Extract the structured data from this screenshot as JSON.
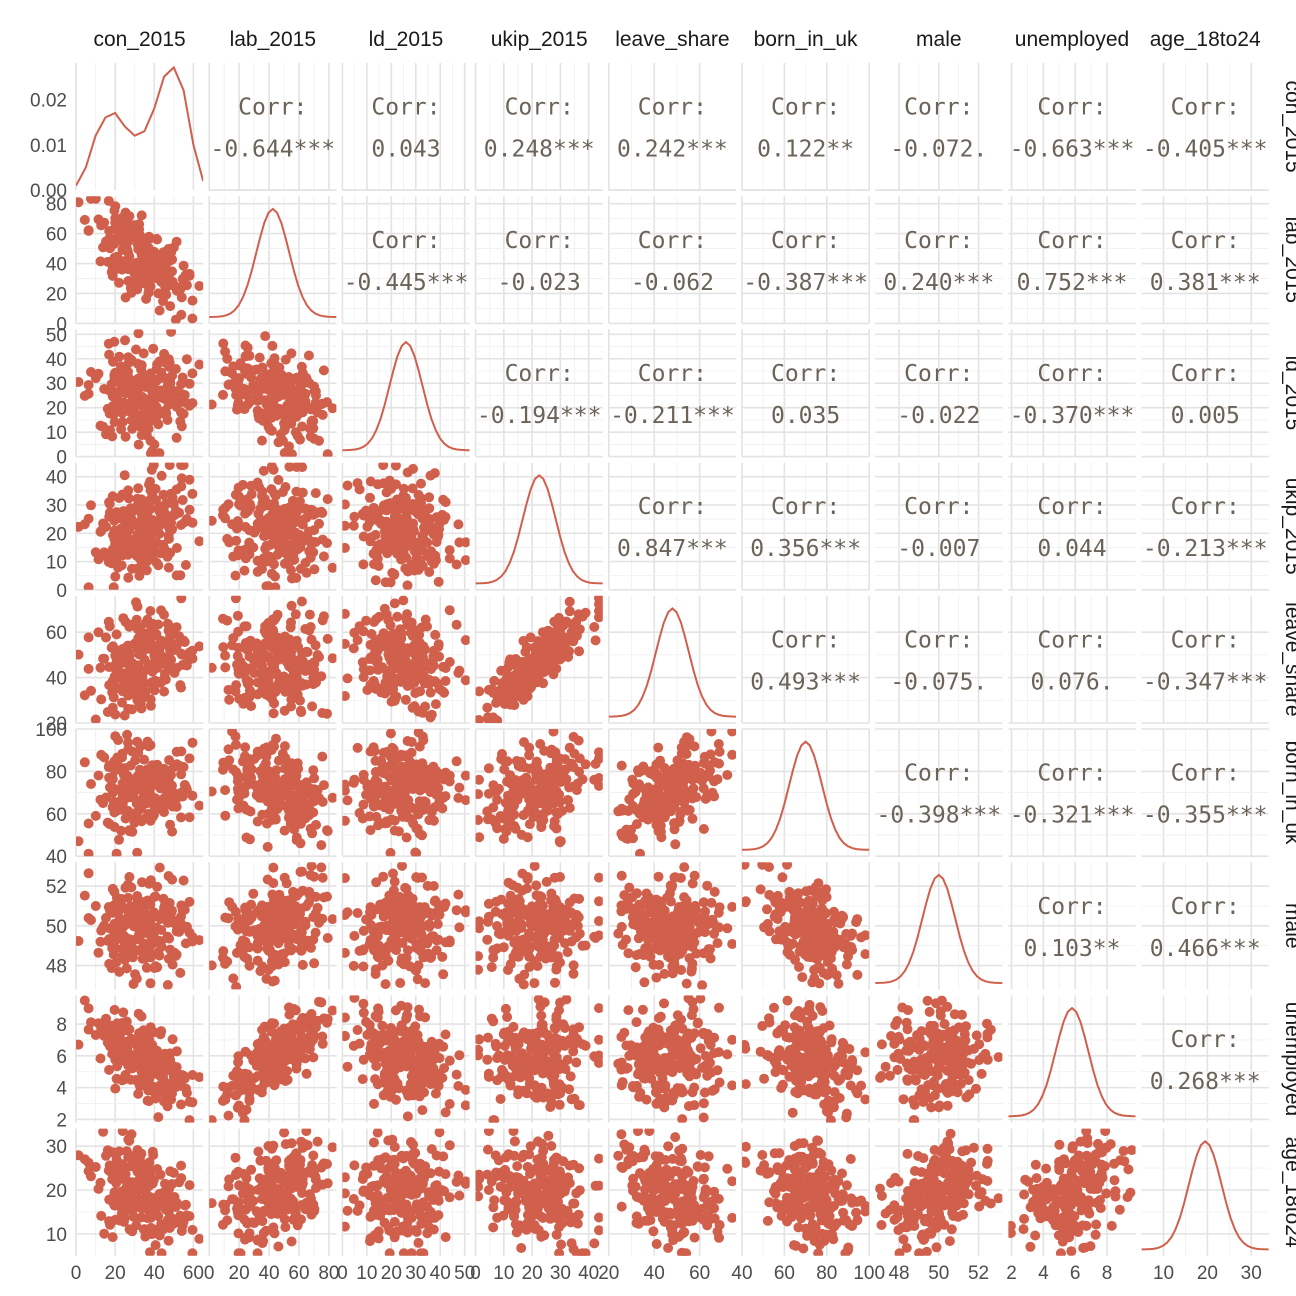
{
  "chart_data": {
    "type": "scatter",
    "title": "",
    "variables": [
      "con_2015",
      "lab_2015",
      "ld_2015",
      "ukip_2015",
      "leave_share",
      "born_in_uk",
      "male",
      "unemployed",
      "age_18to24"
    ],
    "strip_labels": [
      "con_2015",
      "lab_2015",
      "ld_2015",
      "ukip_2015",
      "leave_share",
      "born_in_uk",
      "male",
      "unemployed",
      "age_18to24"
    ],
    "ranges": [
      [
        0,
        65
      ],
      [
        0,
        85
      ],
      [
        0,
        52
      ],
      [
        0,
        45
      ],
      [
        20,
        76
      ],
      [
        40,
        100
      ],
      [
        46.8,
        53.2
      ],
      [
        1.8,
        9.8
      ],
      [
        5,
        34
      ]
    ],
    "x_ticks": [
      [
        0,
        20,
        40,
        60
      ],
      [
        0,
        20,
        40,
        60,
        80
      ],
      [
        0,
        10,
        20,
        30,
        40,
        50
      ],
      [
        0,
        10,
        20,
        30,
        40
      ],
      [
        20,
        40,
        60
      ],
      [
        40,
        60,
        80,
        100
      ],
      [
        48,
        50,
        52
      ],
      [
        2,
        4,
        6,
        8
      ],
      [
        10,
        20,
        30
      ]
    ],
    "x_tick_labels": [
      [
        "0",
        "20",
        "40",
        "60"
      ],
      [
        "0",
        "20",
        "40",
        "60",
        "80"
      ],
      [
        "0",
        "10",
        "20",
        "30",
        "40",
        "50"
      ],
      [
        "0",
        "10",
        "20",
        "30",
        "40"
      ],
      [
        "20",
        "40",
        "60"
      ],
      [
        "40",
        "60",
        "80",
        "100"
      ],
      [
        "48",
        "50",
        "52"
      ],
      [
        "2",
        "4",
        "6",
        "8"
      ],
      [
        "10",
        "20",
        "30"
      ]
    ],
    "y_ticks": [
      [
        0,
        0.01,
        0.02
      ],
      [
        0,
        20,
        40,
        60,
        80
      ],
      [
        0,
        10,
        20,
        30,
        40,
        50
      ],
      [
        0,
        10,
        20,
        30,
        40
      ],
      [
        20,
        40,
        60
      ],
      [
        40,
        60,
        80,
        100
      ],
      [
        48,
        50,
        52
      ],
      [
        2,
        4,
        6,
        8
      ],
      [
        10,
        20,
        30
      ]
    ],
    "y_tick_labels": [
      [
        "0.00",
        "0.01",
        "0.02"
      ],
      [
        "0",
        "20",
        "40",
        "60",
        "80"
      ],
      [
        "0",
        "10",
        "20",
        "30",
        "40",
        "50"
      ],
      [
        "0",
        "10",
        "20",
        "30",
        "40"
      ],
      [
        "20",
        "40",
        "60"
      ],
      [
        "40",
        "60",
        "80",
        "100"
      ],
      [
        "48",
        "50",
        "52"
      ],
      [
        "2",
        "4",
        "6",
        "8"
      ],
      [
        "10",
        "20",
        "30"
      ]
    ],
    "density_ylim": [
      0,
      0.028
    ],
    "density_curve": {
      "x": [
        0,
        5,
        10,
        15,
        20,
        25,
        30,
        35,
        40,
        45,
        50,
        55,
        60,
        65
      ],
      "y": [
        0.001,
        0.005,
        0.012,
        0.016,
        0.017,
        0.014,
        0.012,
        0.013,
        0.018,
        0.025,
        0.027,
        0.022,
        0.01,
        0.002
      ]
    },
    "correlations": [
      [
        "",
        "Corr:",
        "Corr:",
        "Corr:",
        "Corr:",
        "Corr:",
        "Corr:",
        "Corr:",
        "Corr:"
      ],
      [
        "",
        "",
        "Corr:",
        "Corr:",
        "Corr:",
        "Corr:",
        "Corr:",
        "Corr:",
        "Corr:"
      ],
      [
        "",
        "",
        "",
        "Corr:",
        "Corr:",
        "Corr:",
        "Corr:",
        "Corr:",
        "Corr:"
      ],
      [
        "",
        "",
        "",
        "",
        "Corr:",
        "Corr:",
        "Corr:",
        "Corr:",
        "Corr:"
      ],
      [
        "",
        "",
        "",
        "",
        "",
        "Corr:",
        "Corr:",
        "Corr:",
        "Corr:"
      ],
      [
        "",
        "",
        "",
        "",
        "",
        "",
        "Corr:",
        "Corr:",
        "Corr:"
      ],
      [
        "",
        "",
        "",
        "",
        "",
        "",
        "",
        "Corr:",
        "Corr:"
      ],
      [
        "",
        "",
        "",
        "",
        "",
        "",
        "",
        "",
        "Corr:"
      ],
      [
        "",
        "",
        "",
        "",
        "",
        "",
        "",
        "",
        ""
      ]
    ],
    "correlation_values": [
      [
        "",
        "-0.644***",
        "0.043",
        "0.248***",
        "0.242***",
        "0.122**",
        "-0.072.",
        "-0.663***",
        "-0.405***"
      ],
      [
        "",
        "",
        "-0.445***",
        "-0.023",
        "-0.062",
        "-0.387***",
        "0.240***",
        "0.752***",
        "0.381***"
      ],
      [
        "",
        "",
        "",
        "-0.194***",
        "-0.211***",
        "0.035",
        "-0.022",
        "-0.370***",
        "0.005"
      ],
      [
        "",
        "",
        "",
        "",
        "0.847***",
        "0.356***",
        "-0.007",
        "0.044",
        "-0.213***"
      ],
      [
        "",
        "",
        "",
        "",
        "",
        "0.493***",
        "-0.075.",
        "0.076.",
        "-0.347***"
      ],
      [
        "",
        "",
        "",
        "",
        "",
        "",
        "-0.398***",
        "-0.321***",
        "-0.355***"
      ],
      [
        "",
        "",
        "",
        "",
        "",
        "",
        "",
        "0.103**",
        "0.466***"
      ],
      [
        "",
        "",
        "",
        "",
        "",
        "",
        "",
        "",
        "0.268***"
      ],
      [
        "",
        "",
        "",
        "",
        "",
        "",
        "",
        "",
        ""
      ]
    ],
    "point_color": "#d05f4b",
    "corr_text_color": "#6b6358",
    "grid": true,
    "legend": "none"
  }
}
